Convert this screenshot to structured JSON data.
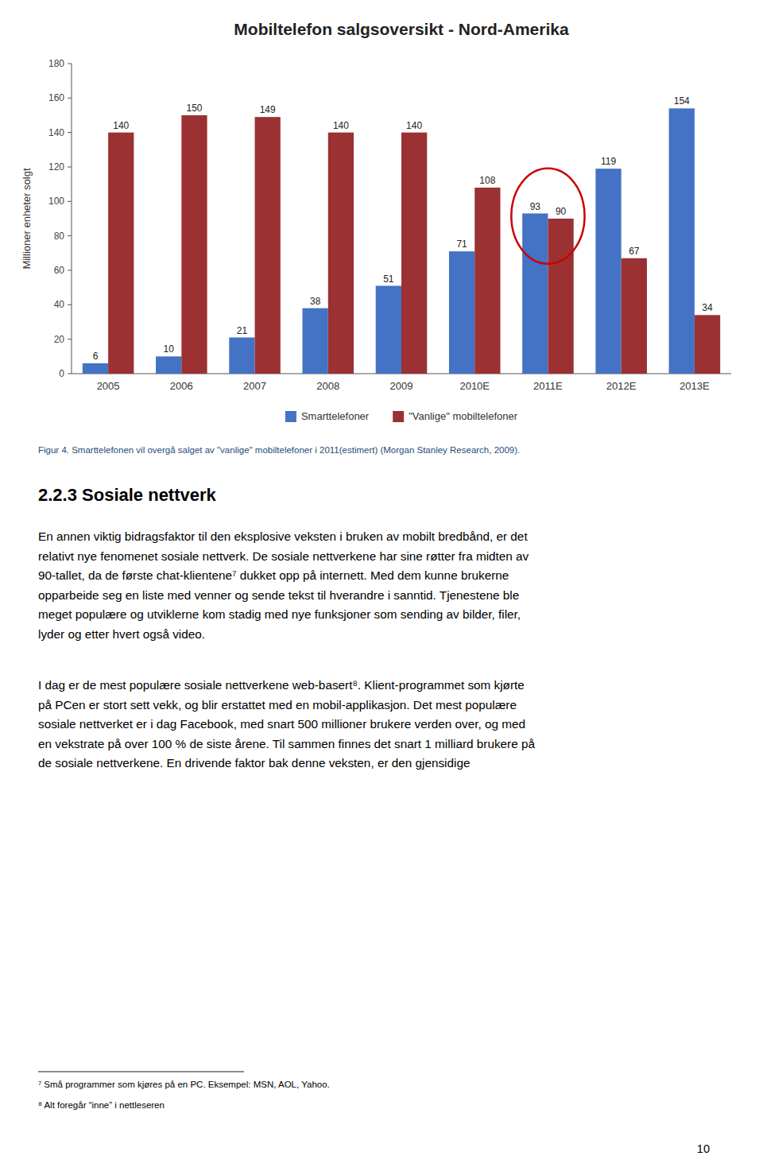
{
  "chart_data": {
    "type": "bar",
    "title": "Mobiltelefon salgsoversikt - Nord-Amerika",
    "ylabel": "Millioner enheter solgt",
    "categories": [
      "2005",
      "2006",
      "2007",
      "2008",
      "2009",
      "2010E",
      "2011E",
      "2012E",
      "2013E"
    ],
    "series": [
      {
        "name": "Smarttelefoner",
        "color": "#4472C4",
        "values": [
          6,
          10,
          21,
          38,
          51,
          71,
          93,
          119,
          154
        ]
      },
      {
        "name": "\"Vanlige\" mobiltelefoner",
        "color": "#9B3132",
        "values": [
          140,
          150,
          149,
          140,
          140,
          108,
          90,
          67,
          34
        ]
      }
    ],
    "ylim": [
      0,
      180
    ],
    "yticks": [
      0,
      20,
      40,
      60,
      80,
      100,
      120,
      140,
      160,
      180
    ],
    "grid": false,
    "legend": "bottom",
    "data_labels": true,
    "highlight": {
      "category": "2011E",
      "color": "#CC0000"
    }
  },
  "caption": {
    "text": "Figur 4. Smarttelefonen vil overgå salget av \"vanlige\" mobiltelefoner i 2011(estimert) (Morgan Stanley Research, 2009).",
    "color": "#1F4E79"
  },
  "section_title": "2.2.3 Sosiale nettverk",
  "paragraphs": [
    [
      "En annen viktig bidragsfaktor til den eksplosive veksten i bruken av mobilt bredbånd, er det",
      "relativt nye fenomenet sosiale nettverk. De sosiale nettverkene har sine røtter fra midten av",
      "90-tallet, da de første chat-klientene⁷ dukket opp på internett. Med dem kunne brukerne",
      "opparbeide seg en liste med venner og sende tekst til hverandre i sanntid. Tjenestene ble",
      "meget populære og utviklerne kom stadig med nye funksjoner som sending av bilder, filer,",
      "lyder og etter hvert også video."
    ],
    [
      "I dag er de mest populære sosiale nettverkene web-basert⁸. Klient-programmet som kjørte",
      "på PCen er stort sett vekk, og blir erstattet med en mobil-applikasjon. Det mest populære",
      "sosiale nettverket er i dag Facebook, med snart 500 millioner brukere verden over, og med",
      "en vekstrate på over 100 % de siste årene. Til sammen finnes det snart 1 milliard brukere på",
      "de sosiale nettverkene. En drivende faktor bak denne veksten, er den gjensidige"
    ]
  ],
  "footnotes": [
    "⁷ Små programmer som kjøres på en PC. Eksempel: MSN, AOL, Yahoo.",
    "⁸ Alt foregår “inne” i nettleseren"
  ],
  "page_number": "10"
}
